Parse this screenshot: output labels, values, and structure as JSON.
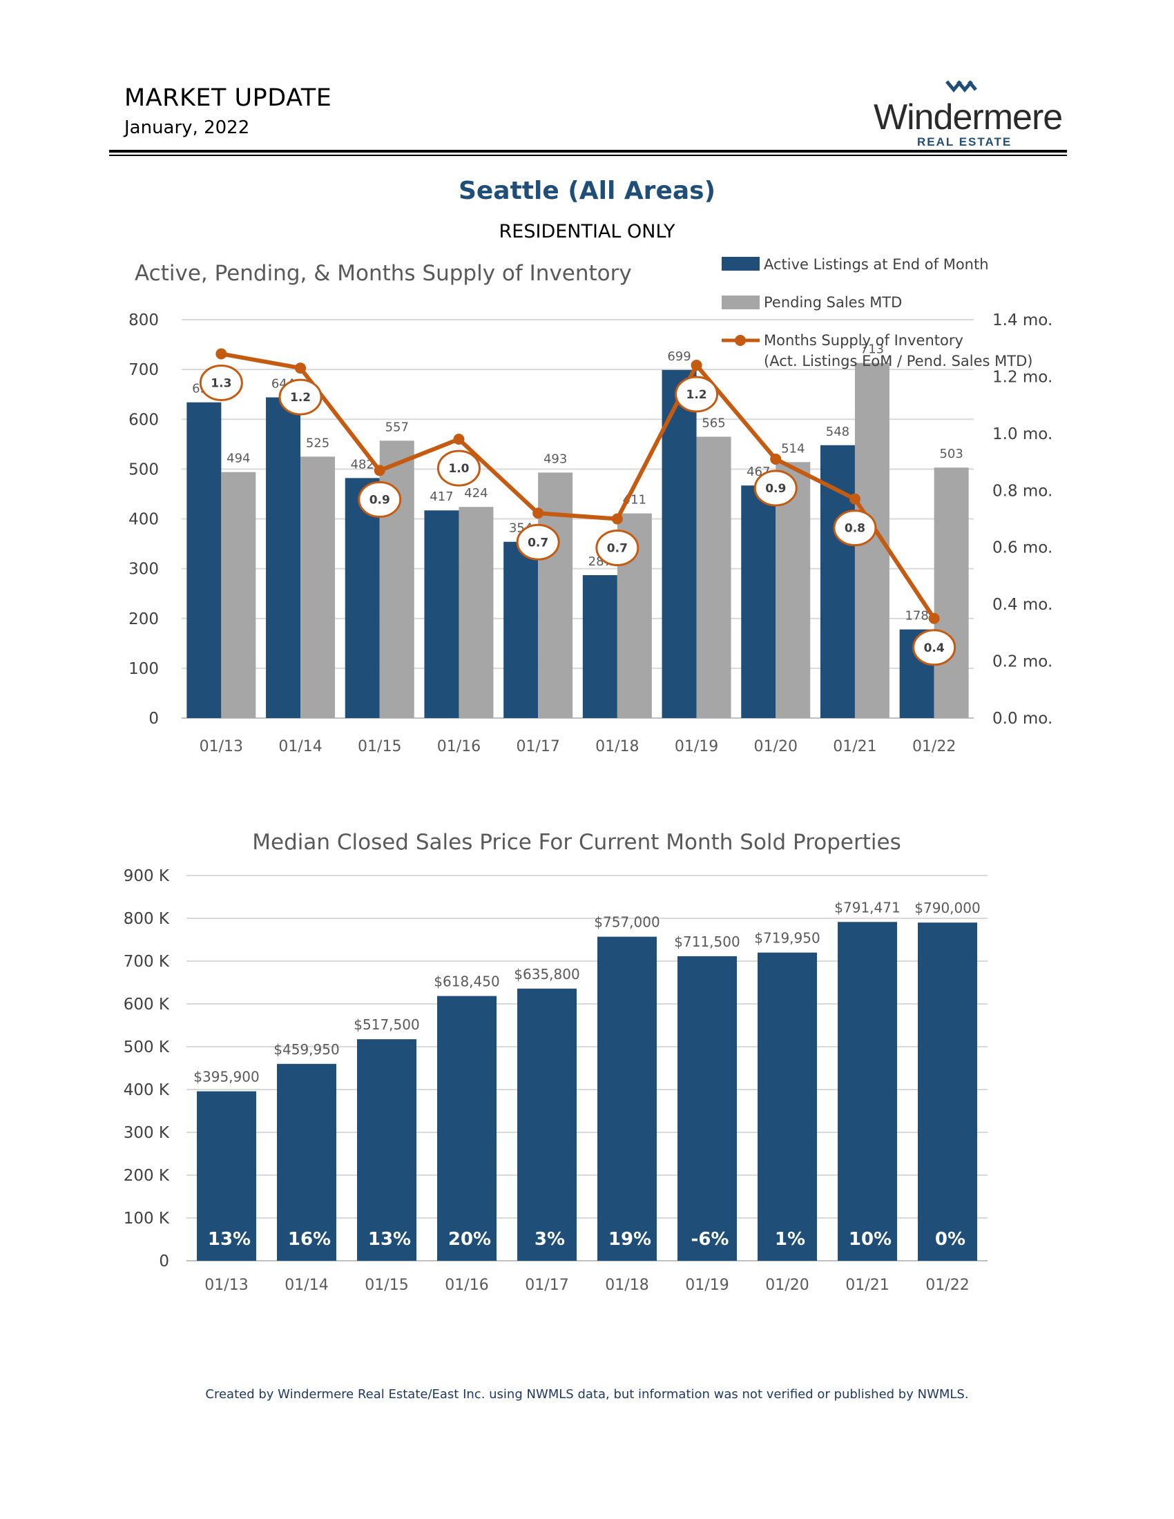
{
  "header": {
    "title": "MARKET UPDATE",
    "date": "January, 2022",
    "brand_name": "Windermere",
    "brand_sub": "REAL ESTATE"
  },
  "section": {
    "title": "Seattle (All Areas)",
    "subtitle": "RESIDENTIAL ONLY"
  },
  "colors": {
    "navy": "#1f4e79",
    "gray": "#a6a6a6",
    "orange": "#c55a11",
    "footer": "#1f3864"
  },
  "chart_data": [
    {
      "type": "bar",
      "title": "Active, Pending, & Months Supply of Inventory",
      "categories": [
        "01/13",
        "01/14",
        "01/15",
        "01/16",
        "01/17",
        "01/18",
        "01/19",
        "01/20",
        "01/21",
        "01/22"
      ],
      "series": [
        {
          "name": "Active Listings at End of Month",
          "values": [
            634,
            644,
            482,
            417,
            354,
            287,
            699,
            467,
            548,
            178
          ]
        },
        {
          "name": "Pending Sales MTD",
          "values": [
            494,
            525,
            557,
            424,
            493,
            411,
            565,
            514,
            713,
            503
          ]
        }
      ],
      "line_series": {
        "name": "Months Supply of Inventory",
        "name_line2": "(Act. Listings EoM / Pend. Sales MTD)",
        "values": [
          1.28,
          1.23,
          0.87,
          0.98,
          0.72,
          0.7,
          1.24,
          0.91,
          0.77,
          0.35
        ],
        "labels": [
          "1.3",
          "1.2",
          "0.9",
          "1.0",
          "0.7",
          "0.7",
          "1.2",
          "0.9",
          "0.8",
          "0.4"
        ]
      },
      "ylim": [
        0,
        800
      ],
      "yticks": [
        "0",
        "100",
        "200",
        "300",
        "400",
        "500",
        "600",
        "700",
        "800"
      ],
      "y2lim": [
        0,
        1.4
      ],
      "y2ticks": [
        "0.0 mo.",
        "0.2 mo.",
        "0.4 mo.",
        "0.6 mo.",
        "0.8 mo.",
        "1.0 mo.",
        "1.2 mo.",
        "1.4 mo."
      ],
      "grid": true,
      "legend": "top-right"
    },
    {
      "type": "bar",
      "title": "Median Closed Sales Price For Current Month Sold Properties",
      "categories": [
        "01/13",
        "01/14",
        "01/15",
        "01/16",
        "01/17",
        "01/18",
        "01/19",
        "01/20",
        "01/21",
        "01/22"
      ],
      "values": [
        395900,
        459950,
        517500,
        618450,
        635800,
        757000,
        711500,
        719950,
        791471,
        790000
      ],
      "value_labels": [
        "$395,900",
        "$459,950",
        "$517,500",
        "$618,450",
        "$635,800",
        "$757,000",
        "$711,500",
        "$719,950",
        "$791,471",
        "$790,000"
      ],
      "yoy_labels": [
        "13%",
        "16%",
        "13%",
        "20%",
        "3%",
        "19%",
        "-6%",
        "1%",
        "10%",
        "0%"
      ],
      "ylim": [
        0,
        900000
      ],
      "yticks": [
        "0",
        "100 K",
        "200 K",
        "300 K",
        "400 K",
        "500 K",
        "600 K",
        "700 K",
        "800 K",
        "900 K"
      ],
      "grid": true
    }
  ],
  "footer": "Created by Windermere Real Estate/East Inc. using NWMLS data, but information was not verified or published by NWMLS."
}
